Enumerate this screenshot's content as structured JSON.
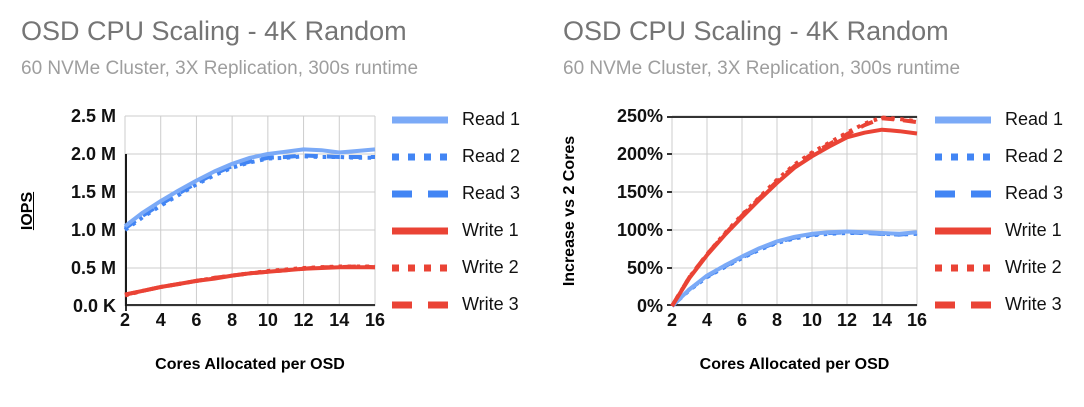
{
  "colors": {
    "read_solid": "#7BAAF7",
    "read_accent": "#4285F4",
    "write_accent": "#EA4335",
    "title_gray": "#757575",
    "subtitle_gray": "#9E9E9E",
    "grid_gray": "#CCCCCC",
    "axis_dark": "#333333",
    "tick_text": "#111111"
  },
  "chart_data": [
    {
      "type": "line",
      "title": "OSD CPU Scaling - 4K Random",
      "subtitle": "60 NVMe Cluster, 3X Replication, 300s runtime",
      "xlabel": "Cores Allocated per OSD",
      "ylabel": "IOPS",
      "yunit": "millions of IOPS",
      "grid": true,
      "legend_position": "right",
      "x": [
        2,
        3,
        4,
        5,
        6,
        7,
        8,
        9,
        10,
        11,
        12,
        13,
        14,
        15,
        16
      ],
      "xticks": [
        "2",
        "4",
        "6",
        "8",
        "10",
        "12",
        "14",
        "16"
      ],
      "yticks": [
        "2.5 M",
        "2.0 M",
        "1.5 M",
        "1.0 M",
        "0.5 M",
        "0.0 K"
      ],
      "xlim": [
        2,
        16
      ],
      "ylim": [
        0,
        2.5
      ],
      "series": [
        {
          "name": "Read 1",
          "color": "#7BAAF7",
          "dash": "solid",
          "values": [
            1.05,
            1.23,
            1.38,
            1.52,
            1.65,
            1.77,
            1.87,
            1.95,
            2.0,
            2.03,
            2.06,
            2.05,
            2.02,
            2.04,
            2.06
          ]
        },
        {
          "name": "Read 2",
          "color": "#4285F4",
          "dash": "dotted",
          "values": [
            1.0,
            1.17,
            1.32,
            1.46,
            1.6,
            1.72,
            1.82,
            1.89,
            1.94,
            1.95,
            1.97,
            1.96,
            1.96,
            1.95,
            1.95
          ]
        },
        {
          "name": "Read 3",
          "color": "#4285F4",
          "dash": "dashed",
          "values": [
            1.02,
            1.19,
            1.34,
            1.48,
            1.62,
            1.74,
            1.84,
            1.9,
            1.95,
            1.96,
            1.98,
            1.97,
            1.96,
            1.96,
            1.96
          ]
        },
        {
          "name": "Write 1",
          "color": "#EA4335",
          "dash": "solid",
          "values": [
            0.15,
            0.2,
            0.25,
            0.29,
            0.33,
            0.36,
            0.4,
            0.43,
            0.45,
            0.47,
            0.49,
            0.5,
            0.51,
            0.51,
            0.51
          ]
        },
        {
          "name": "Write 2",
          "color": "#EA4335",
          "dash": "dotted",
          "values": [
            0.14,
            0.2,
            0.25,
            0.29,
            0.33,
            0.37,
            0.4,
            0.43,
            0.46,
            0.48,
            0.5,
            0.51,
            0.52,
            0.52,
            0.52
          ]
        },
        {
          "name": "Write 3",
          "color": "#EA4335",
          "dash": "dashed",
          "values": [
            0.15,
            0.2,
            0.25,
            0.29,
            0.33,
            0.37,
            0.4,
            0.43,
            0.45,
            0.47,
            0.49,
            0.51,
            0.51,
            0.52,
            0.51
          ]
        }
      ]
    },
    {
      "type": "line",
      "title": "OSD CPU Scaling - 4K Random",
      "subtitle": "60 NVMe Cluster, 3X Replication, 300s runtime",
      "xlabel": "Cores Allocated per OSD",
      "ylabel": "Increase vs 2 Cores",
      "yunit": "percent",
      "grid": true,
      "legend_position": "right",
      "x": [
        2,
        3,
        4,
        5,
        6,
        7,
        8,
        9,
        10,
        11,
        12,
        13,
        14,
        15,
        16
      ],
      "xticks": [
        "2",
        "4",
        "6",
        "8",
        "10",
        "12",
        "14",
        "16"
      ],
      "yticks": [
        "250%",
        "200%",
        "150%",
        "100%",
        "50%",
        "0%"
      ],
      "xlim": [
        2,
        16
      ],
      "ylim": [
        0,
        250
      ],
      "series": [
        {
          "name": "Read 1",
          "color": "#7BAAF7",
          "dash": "solid",
          "values": [
            0,
            22,
            40,
            53,
            65,
            76,
            85,
            91,
            95,
            97,
            98,
            97,
            96,
            95,
            97
          ]
        },
        {
          "name": "Read 2",
          "color": "#4285F4",
          "dash": "dotted",
          "values": [
            0,
            21,
            38,
            51,
            63,
            74,
            83,
            89,
            93,
            95,
            96,
            96,
            95,
            94,
            95
          ]
        },
        {
          "name": "Read 3",
          "color": "#4285F4",
          "dash": "dashed",
          "values": [
            0,
            22,
            39,
            52,
            64,
            75,
            84,
            90,
            94,
            96,
            97,
            96,
            95,
            94,
            96
          ]
        },
        {
          "name": "Write 1",
          "color": "#EA4335",
          "dash": "solid",
          "values": [
            0,
            37,
            67,
            93,
            117,
            140,
            162,
            182,
            197,
            210,
            222,
            228,
            232,
            230,
            227
          ]
        },
        {
          "name": "Write 2",
          "color": "#EA4335",
          "dash": "dotted",
          "values": [
            0,
            38,
            68,
            95,
            120,
            143,
            166,
            186,
            202,
            215,
            228,
            240,
            248,
            246,
            243
          ]
        },
        {
          "name": "Write 3",
          "color": "#EA4335",
          "dash": "dashed",
          "values": [
            0,
            38,
            68,
            94,
            119,
            142,
            164,
            184,
            200,
            213,
            226,
            238,
            247,
            245,
            242
          ]
        }
      ]
    }
  ]
}
